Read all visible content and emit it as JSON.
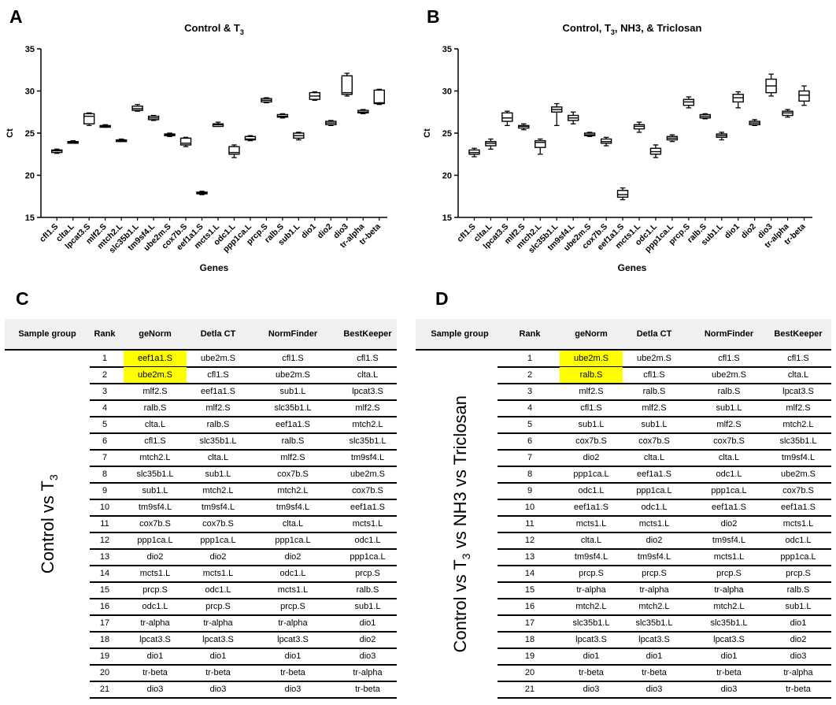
{
  "panels": {
    "a": "A",
    "b": "B",
    "c": "C",
    "d": "D"
  },
  "chart_data": [
    {
      "type": "box",
      "title": "Control & T",
      "title_sub": "3",
      "xlabel": "Genes",
      "ylabel": "Ct",
      "ylim": [
        15,
        35
      ],
      "yticks": [
        15,
        20,
        25,
        30,
        35
      ],
      "categories": [
        "cfl1.S",
        "clta.L",
        "lpcat3.S",
        "mlf2.S",
        "mtch2.L",
        "slc35b1.L",
        "tm9sf4.L",
        "ube2m.S",
        "cox7b.S",
        "eef1a1.S",
        "mcts1.L",
        "odc1.L",
        "ppp1ca.L",
        "prcp.S",
        "ralb.S",
        "sub1.L",
        "dio1",
        "dio2",
        "dio3",
        "tr-alpha",
        "tr-beta"
      ],
      "boxes": [
        {
          "min": 22.6,
          "q1": 22.7,
          "median": 22.9,
          "q3": 23.0,
          "max": 23.1
        },
        {
          "min": 23.8,
          "q1": 23.8,
          "median": 23.9,
          "q3": 24.0,
          "max": 24.1
        },
        {
          "min": 25.9,
          "q1": 26.1,
          "median": 27.0,
          "q3": 27.3,
          "max": 27.4
        },
        {
          "min": 25.7,
          "q1": 25.7,
          "median": 25.8,
          "q3": 25.9,
          "max": 26.0
        },
        {
          "min": 24.0,
          "q1": 24.0,
          "median": 24.1,
          "q3": 24.2,
          "max": 24.3
        },
        {
          "min": 27.6,
          "q1": 27.7,
          "median": 27.9,
          "q3": 28.2,
          "max": 28.4
        },
        {
          "min": 26.5,
          "q1": 26.6,
          "median": 26.8,
          "q3": 27.0,
          "max": 27.1
        },
        {
          "min": 24.6,
          "q1": 24.7,
          "median": 24.8,
          "q3": 24.9,
          "max": 25.0
        },
        {
          "min": 23.4,
          "q1": 23.6,
          "median": 23.8,
          "q3": 24.4,
          "max": 24.5
        },
        {
          "min": 17.7,
          "q1": 17.8,
          "median": 17.9,
          "q3": 18.0,
          "max": 18.1
        },
        {
          "min": 25.8,
          "q1": 25.8,
          "median": 26.0,
          "q3": 26.1,
          "max": 26.3
        },
        {
          "min": 22.1,
          "q1": 22.5,
          "median": 22.7,
          "q3": 23.4,
          "max": 23.6
        },
        {
          "min": 24.1,
          "q1": 24.2,
          "median": 24.3,
          "q3": 24.6,
          "max": 24.7
        },
        {
          "min": 28.6,
          "q1": 28.7,
          "median": 28.9,
          "q3": 29.1,
          "max": 29.2
        },
        {
          "min": 26.8,
          "q1": 26.9,
          "median": 27.0,
          "q3": 27.2,
          "max": 27.3
        },
        {
          "min": 24.2,
          "q1": 24.4,
          "median": 24.7,
          "q3": 25.0,
          "max": 25.1
        },
        {
          "min": 28.9,
          "q1": 29.0,
          "median": 29.4,
          "q3": 29.8,
          "max": 29.9
        },
        {
          "min": 25.9,
          "q1": 26.0,
          "median": 26.2,
          "q3": 26.4,
          "max": 26.5
        },
        {
          "min": 29.4,
          "q1": 29.6,
          "median": 29.8,
          "q3": 31.8,
          "max": 32.1
        },
        {
          "min": 27.3,
          "q1": 27.4,
          "median": 27.5,
          "q3": 27.7,
          "max": 27.8
        },
        {
          "min": 28.4,
          "q1": 28.5,
          "median": 28.6,
          "q3": 30.1,
          "max": 30.2
        }
      ]
    },
    {
      "type": "box",
      "title": "Control, T",
      "title_sub": "3",
      "title_rest": ", NH3, & Triclosan",
      "xlabel": "Genes",
      "ylabel": "Ct",
      "ylim": [
        15,
        35
      ],
      "yticks": [
        15,
        20,
        25,
        30,
        35
      ],
      "categories": [
        "cfl1.S",
        "clta.L",
        "lpcat3.S",
        "mlf2.S",
        "mtch2.L",
        "slc35b1.L",
        "tm9sf4.L",
        "ube2m.S",
        "cox7b.S",
        "eef1a1.S",
        "mcts1.L",
        "odc1.L",
        "ppp1ca.L",
        "prcp.S",
        "ralb.S",
        "sub1.L",
        "dio1",
        "dio2",
        "dio3",
        "tr-alpha",
        "tr-beta"
      ],
      "boxes": [
        {
          "min": 22.2,
          "q1": 22.5,
          "median": 22.7,
          "q3": 23.0,
          "max": 23.2
        },
        {
          "min": 23.1,
          "q1": 23.5,
          "median": 23.8,
          "q3": 24.0,
          "max": 24.3
        },
        {
          "min": 25.9,
          "q1": 26.4,
          "median": 26.8,
          "q3": 27.4,
          "max": 27.6
        },
        {
          "min": 25.4,
          "q1": 25.6,
          "median": 25.8,
          "q3": 25.9,
          "max": 26.1
        },
        {
          "min": 22.5,
          "q1": 23.3,
          "median": 23.9,
          "q3": 24.1,
          "max": 24.3
        },
        {
          "min": 25.9,
          "q1": 27.5,
          "median": 27.8,
          "q3": 28.1,
          "max": 28.5
        },
        {
          "min": 26.1,
          "q1": 26.5,
          "median": 26.8,
          "q3": 27.1,
          "max": 27.5
        },
        {
          "min": 24.6,
          "q1": 24.7,
          "median": 24.8,
          "q3": 25.0,
          "max": 25.1
        },
        {
          "min": 23.5,
          "q1": 23.8,
          "median": 24.0,
          "q3": 24.3,
          "max": 24.5
        },
        {
          "min": 17.1,
          "q1": 17.4,
          "median": 17.7,
          "q3": 18.2,
          "max": 18.5
        },
        {
          "min": 25.1,
          "q1": 25.5,
          "median": 25.8,
          "q3": 26.0,
          "max": 26.3
        },
        {
          "min": 22.1,
          "q1": 22.5,
          "median": 22.8,
          "q3": 23.2,
          "max": 23.6
        },
        {
          "min": 24.0,
          "q1": 24.2,
          "median": 24.4,
          "q3": 24.6,
          "max": 24.8
        },
        {
          "min": 28.0,
          "q1": 28.3,
          "median": 28.7,
          "q3": 29.0,
          "max": 29.3
        },
        {
          "min": 26.7,
          "q1": 26.8,
          "median": 27.0,
          "q3": 27.2,
          "max": 27.3
        },
        {
          "min": 24.2,
          "q1": 24.5,
          "median": 24.7,
          "q3": 24.9,
          "max": 25.1
        },
        {
          "min": 28.0,
          "q1": 28.7,
          "median": 29.2,
          "q3": 29.6,
          "max": 29.9
        },
        {
          "min": 25.9,
          "q1": 26.0,
          "median": 26.2,
          "q3": 26.4,
          "max": 26.6
        },
        {
          "min": 29.4,
          "q1": 29.8,
          "median": 30.6,
          "q3": 31.4,
          "max": 32.0
        },
        {
          "min": 26.9,
          "q1": 27.1,
          "median": 27.4,
          "q3": 27.6,
          "max": 27.8
        },
        {
          "min": 28.3,
          "q1": 28.8,
          "median": 29.5,
          "q3": 30.0,
          "max": 30.6
        }
      ]
    }
  ],
  "tables": [
    {
      "headers": [
        "Sample group",
        "Rank",
        "geNorm",
        "Detla CT",
        "NormFinder",
        "BestKeeper"
      ],
      "group_label": "Control vs T",
      "group_label_sub": "3",
      "highlight_rows": [
        0,
        1
      ],
      "rows": [
        [
          "1",
          "eef1a1.S",
          "ube2m.S",
          "cfl1.S",
          "cfl1.S"
        ],
        [
          "2",
          "ube2m.S",
          "cfl1.S",
          "ube2m.S",
          "clta.L"
        ],
        [
          "3",
          "mlf2.S",
          "eef1a1.S",
          "sub1.L",
          "lpcat3.S"
        ],
        [
          "4",
          "ralb.S",
          "mlf2.S",
          "slc35b1.L",
          "mlf2.S"
        ],
        [
          "5",
          "clta.L",
          "ralb.S",
          "eef1a1.S",
          "mtch2.L"
        ],
        [
          "6",
          "cfl1.S",
          "slc35b1.L",
          "ralb.S",
          "slc35b1.L"
        ],
        [
          "7",
          "mtch2.L",
          "clta.L",
          "mlf2.S",
          "tm9sf4.L"
        ],
        [
          "8",
          "slc35b1.L",
          "sub1.L",
          "cox7b.S",
          "ube2m.S"
        ],
        [
          "9",
          "sub1.L",
          "mtch2.L",
          "mtch2.L",
          "cox7b.S"
        ],
        [
          "10",
          "tm9sf4.L",
          "tm9sf4.L",
          "tm9sf4.L",
          "eef1a1.S"
        ],
        [
          "11",
          "cox7b.S",
          "cox7b.S",
          "clta.L",
          "mcts1.L"
        ],
        [
          "12",
          "ppp1ca.L",
          "ppp1ca.L",
          "ppp1ca.L",
          "odc1.L"
        ],
        [
          "13",
          "dio2",
          "dio2",
          "dio2",
          "ppp1ca.L"
        ],
        [
          "14",
          "mcts1.L",
          "mcts1.L",
          "odc1.L",
          "prcp.S"
        ],
        [
          "15",
          "prcp.S",
          "odc1.L",
          "mcts1.L",
          "ralb.S"
        ],
        [
          "16",
          "odc1.L",
          "prcp.S",
          "prcp.S",
          "sub1.L"
        ],
        [
          "17",
          "tr-alpha",
          "tr-alpha",
          "tr-alpha",
          "dio1"
        ],
        [
          "18",
          "lpcat3.S",
          "lpcat3.S",
          "lpcat3.S",
          "dio2"
        ],
        [
          "19",
          "dio1",
          "dio1",
          "dio1",
          "dio3"
        ],
        [
          "20",
          "tr-beta",
          "tr-beta",
          "tr-beta",
          "tr-alpha"
        ],
        [
          "21",
          "dio3",
          "dio3",
          "dio3",
          "tr-beta"
        ]
      ]
    },
    {
      "headers": [
        "Sample group",
        "Rank",
        "geNorm",
        "Detla CT",
        "NormFinder",
        "BestKeeper"
      ],
      "group_label": "Control vs T",
      "group_label_sub": "3",
      "group_label_rest": " vs NH3 vs Triclosan",
      "highlight_rows": [
        0,
        1
      ],
      "rows": [
        [
          "1",
          "ube2m.S",
          "ube2m.S",
          "cfl1.S",
          "cfl1.S"
        ],
        [
          "2",
          "ralb.S",
          "cfl1.S",
          "ube2m.S",
          "clta.L"
        ],
        [
          "3",
          "mlf2.S",
          "ralb.S",
          "ralb.S",
          "lpcat3.S"
        ],
        [
          "4",
          "cfl1.S",
          "mlf2.S",
          "sub1.L",
          "mlf2.S"
        ],
        [
          "5",
          "sub1.L",
          "sub1.L",
          "mlf2.S",
          "mtch2.L"
        ],
        [
          "6",
          "cox7b.S",
          "cox7b.S",
          "cox7b.S",
          "slc35b1.L"
        ],
        [
          "7",
          "dio2",
          "clta.L",
          "clta.L",
          "tm9sf4.L"
        ],
        [
          "8",
          "ppp1ca.L",
          "eef1a1.S",
          "odc1.L",
          "ube2m.S"
        ],
        [
          "9",
          "odc1.L",
          "ppp1ca.L",
          "ppp1ca.L",
          "cox7b.S"
        ],
        [
          "10",
          "eef1a1.S",
          "odc1.L",
          "eef1a1.S",
          "eef1a1.S"
        ],
        [
          "11",
          "mcts1.L",
          "mcts1.L",
          "dio2",
          "mcts1.L"
        ],
        [
          "12",
          "clta.L",
          "dio2",
          "tm9sf4.L",
          "odc1.L"
        ],
        [
          "13",
          "tm9sf4.L",
          "tm9sf4.L",
          "mcts1.L",
          "ppp1ca.L"
        ],
        [
          "14",
          "prcp.S",
          "prcp.S",
          "prcp.S",
          "prcp.S"
        ],
        [
          "15",
          "tr-alpha",
          "tr-alpha",
          "tr-alpha",
          "ralb.S"
        ],
        [
          "16",
          "mtch2.L",
          "mtch2.L",
          "mtch2.L",
          "sub1.L"
        ],
        [
          "17",
          "slc35b1.L",
          "slc35b1.L",
          "slc35b1.L",
          "dio1"
        ],
        [
          "18",
          "lpcat3.S",
          "lpcat3.S",
          "lpcat3.S",
          "dio2"
        ],
        [
          "19",
          "dio1",
          "dio1",
          "dio1",
          "dio3"
        ],
        [
          "20",
          "tr-beta",
          "tr-beta",
          "tr-beta",
          "tr-alpha"
        ],
        [
          "21",
          "dio3",
          "dio3",
          "dio3",
          "tr-beta"
        ]
      ]
    }
  ]
}
